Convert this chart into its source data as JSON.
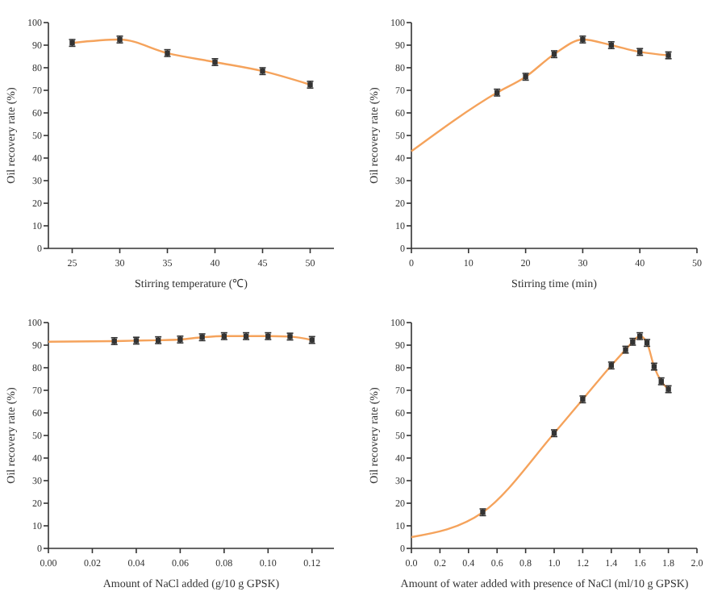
{
  "chart_data": [
    {
      "type": "line",
      "xlabel": "Stirring temperature (℃)",
      "ylabel": "Oil recovery rate (%)",
      "xlim": [
        22.5,
        52.5
      ],
      "xticks": [
        25,
        30,
        35,
        40,
        45,
        50
      ],
      "ylim": [
        0,
        100
      ],
      "yticks": [
        0,
        10,
        20,
        30,
        40,
        50,
        60,
        70,
        80,
        90,
        100
      ],
      "marker": "square",
      "series": [
        {
          "color": "#f5a35c",
          "x": [
            25,
            30,
            35,
            40,
            45,
            50
          ],
          "values": [
            91,
            92.5,
            86.5,
            82.5,
            78.5,
            72.5
          ],
          "errors": [
            1.5,
            1.5,
            1.5,
            1.5,
            1.5,
            1.5
          ]
        }
      ]
    },
    {
      "type": "line",
      "xlabel": "Stirring time (min)",
      "ylabel": "Oil recovery rate (%)",
      "xlim": [
        0,
        50
      ],
      "xticks": [
        0,
        10,
        20,
        30,
        40,
        50
      ],
      "ylim": [
        0,
        100
      ],
      "yticks": [
        0,
        10,
        20,
        30,
        40,
        50,
        60,
        70,
        80,
        90,
        100
      ],
      "marker": "square",
      "series": [
        {
          "color": "#f5a35c",
          "x": [
            0,
            15,
            20,
            25,
            30,
            35,
            40,
            45
          ],
          "values": [
            43,
            69,
            76,
            86,
            92.5,
            90,
            87,
            85.5
          ],
          "errors": [
            null,
            1.5,
            1.5,
            1.5,
            1.5,
            1.5,
            1.5,
            1.5
          ]
        }
      ]
    },
    {
      "type": "line",
      "xlabel": "Amount of NaCl added (g/10 g GPSK)",
      "ylabel": "Oil recovery rate (%)",
      "xlim": [
        0,
        0.13
      ],
      "xticks": [
        {
          "value": 0,
          "label": "0.00"
        },
        {
          "value": 0.02,
          "label": "0.02"
        },
        {
          "value": 0.04,
          "label": "0.04"
        },
        {
          "value": 0.06,
          "label": "0.06"
        },
        {
          "value": 0.08,
          "label": "0.08"
        },
        {
          "value": 0.1,
          "label": "0.10"
        },
        {
          "value": 0.12,
          "label": "0.12"
        }
      ],
      "ylim": [
        0,
        100
      ],
      "yticks": [
        0,
        10,
        20,
        30,
        40,
        50,
        60,
        70,
        80,
        90,
        100
      ],
      "marker": "square",
      "series": [
        {
          "color": "#f5a35c",
          "x": [
            0,
            0.03,
            0.04,
            0.05,
            0.06,
            0.07,
            0.08,
            0.09,
            0.1,
            0.11,
            0.12
          ],
          "values": [
            91.5,
            91.8,
            92,
            92.2,
            92.5,
            93.5,
            94,
            94,
            94,
            93.8,
            92.3
          ],
          "errors": [
            null,
            1.5,
            1.5,
            1.5,
            1.5,
            1.5,
            1.5,
            1.5,
            1.5,
            1.5,
            1.5
          ]
        }
      ]
    },
    {
      "type": "line",
      "xlabel": "Amount of water added with presence of NaCl (ml/10 g GPSK)",
      "ylabel": "Oil recovery rate (%)",
      "xlim": [
        0,
        2
      ],
      "xticks": [
        {
          "value": 0,
          "label": "0.0"
        },
        {
          "value": 0.2,
          "label": "0.2"
        },
        {
          "value": 0.4,
          "label": "0.4"
        },
        {
          "value": 0.6,
          "label": "0.6"
        },
        {
          "value": 0.8,
          "label": "0.8"
        },
        {
          "value": 1,
          "label": "1.0"
        },
        {
          "value": 1.2,
          "label": "1.2"
        },
        {
          "value": 1.4,
          "label": "1.4"
        },
        {
          "value": 1.6,
          "label": "1.6"
        },
        {
          "value": 1.8,
          "label": "1.8"
        },
        {
          "value": 2,
          "label": "2.0"
        }
      ],
      "ylim": [
        0,
        100
      ],
      "yticks": [
        0,
        10,
        20,
        30,
        40,
        50,
        60,
        70,
        80,
        90,
        100
      ],
      "marker": "square",
      "series": [
        {
          "color": "#f5a35c",
          "x": [
            0,
            0.5,
            1,
            1.2,
            1.4,
            1.5,
            1.55,
            1.6,
            1.65,
            1.7,
            1.75,
            1.8
          ],
          "values": [
            5,
            16,
            51,
            66,
            81,
            88,
            91.5,
            94,
            91,
            80.5,
            74,
            70.5
          ],
          "errors": [
            null,
            1.5,
            1.5,
            1.5,
            1.5,
            1.5,
            1.5,
            1.5,
            1.5,
            1.5,
            1.5,
            1.5
          ]
        }
      ]
    }
  ]
}
